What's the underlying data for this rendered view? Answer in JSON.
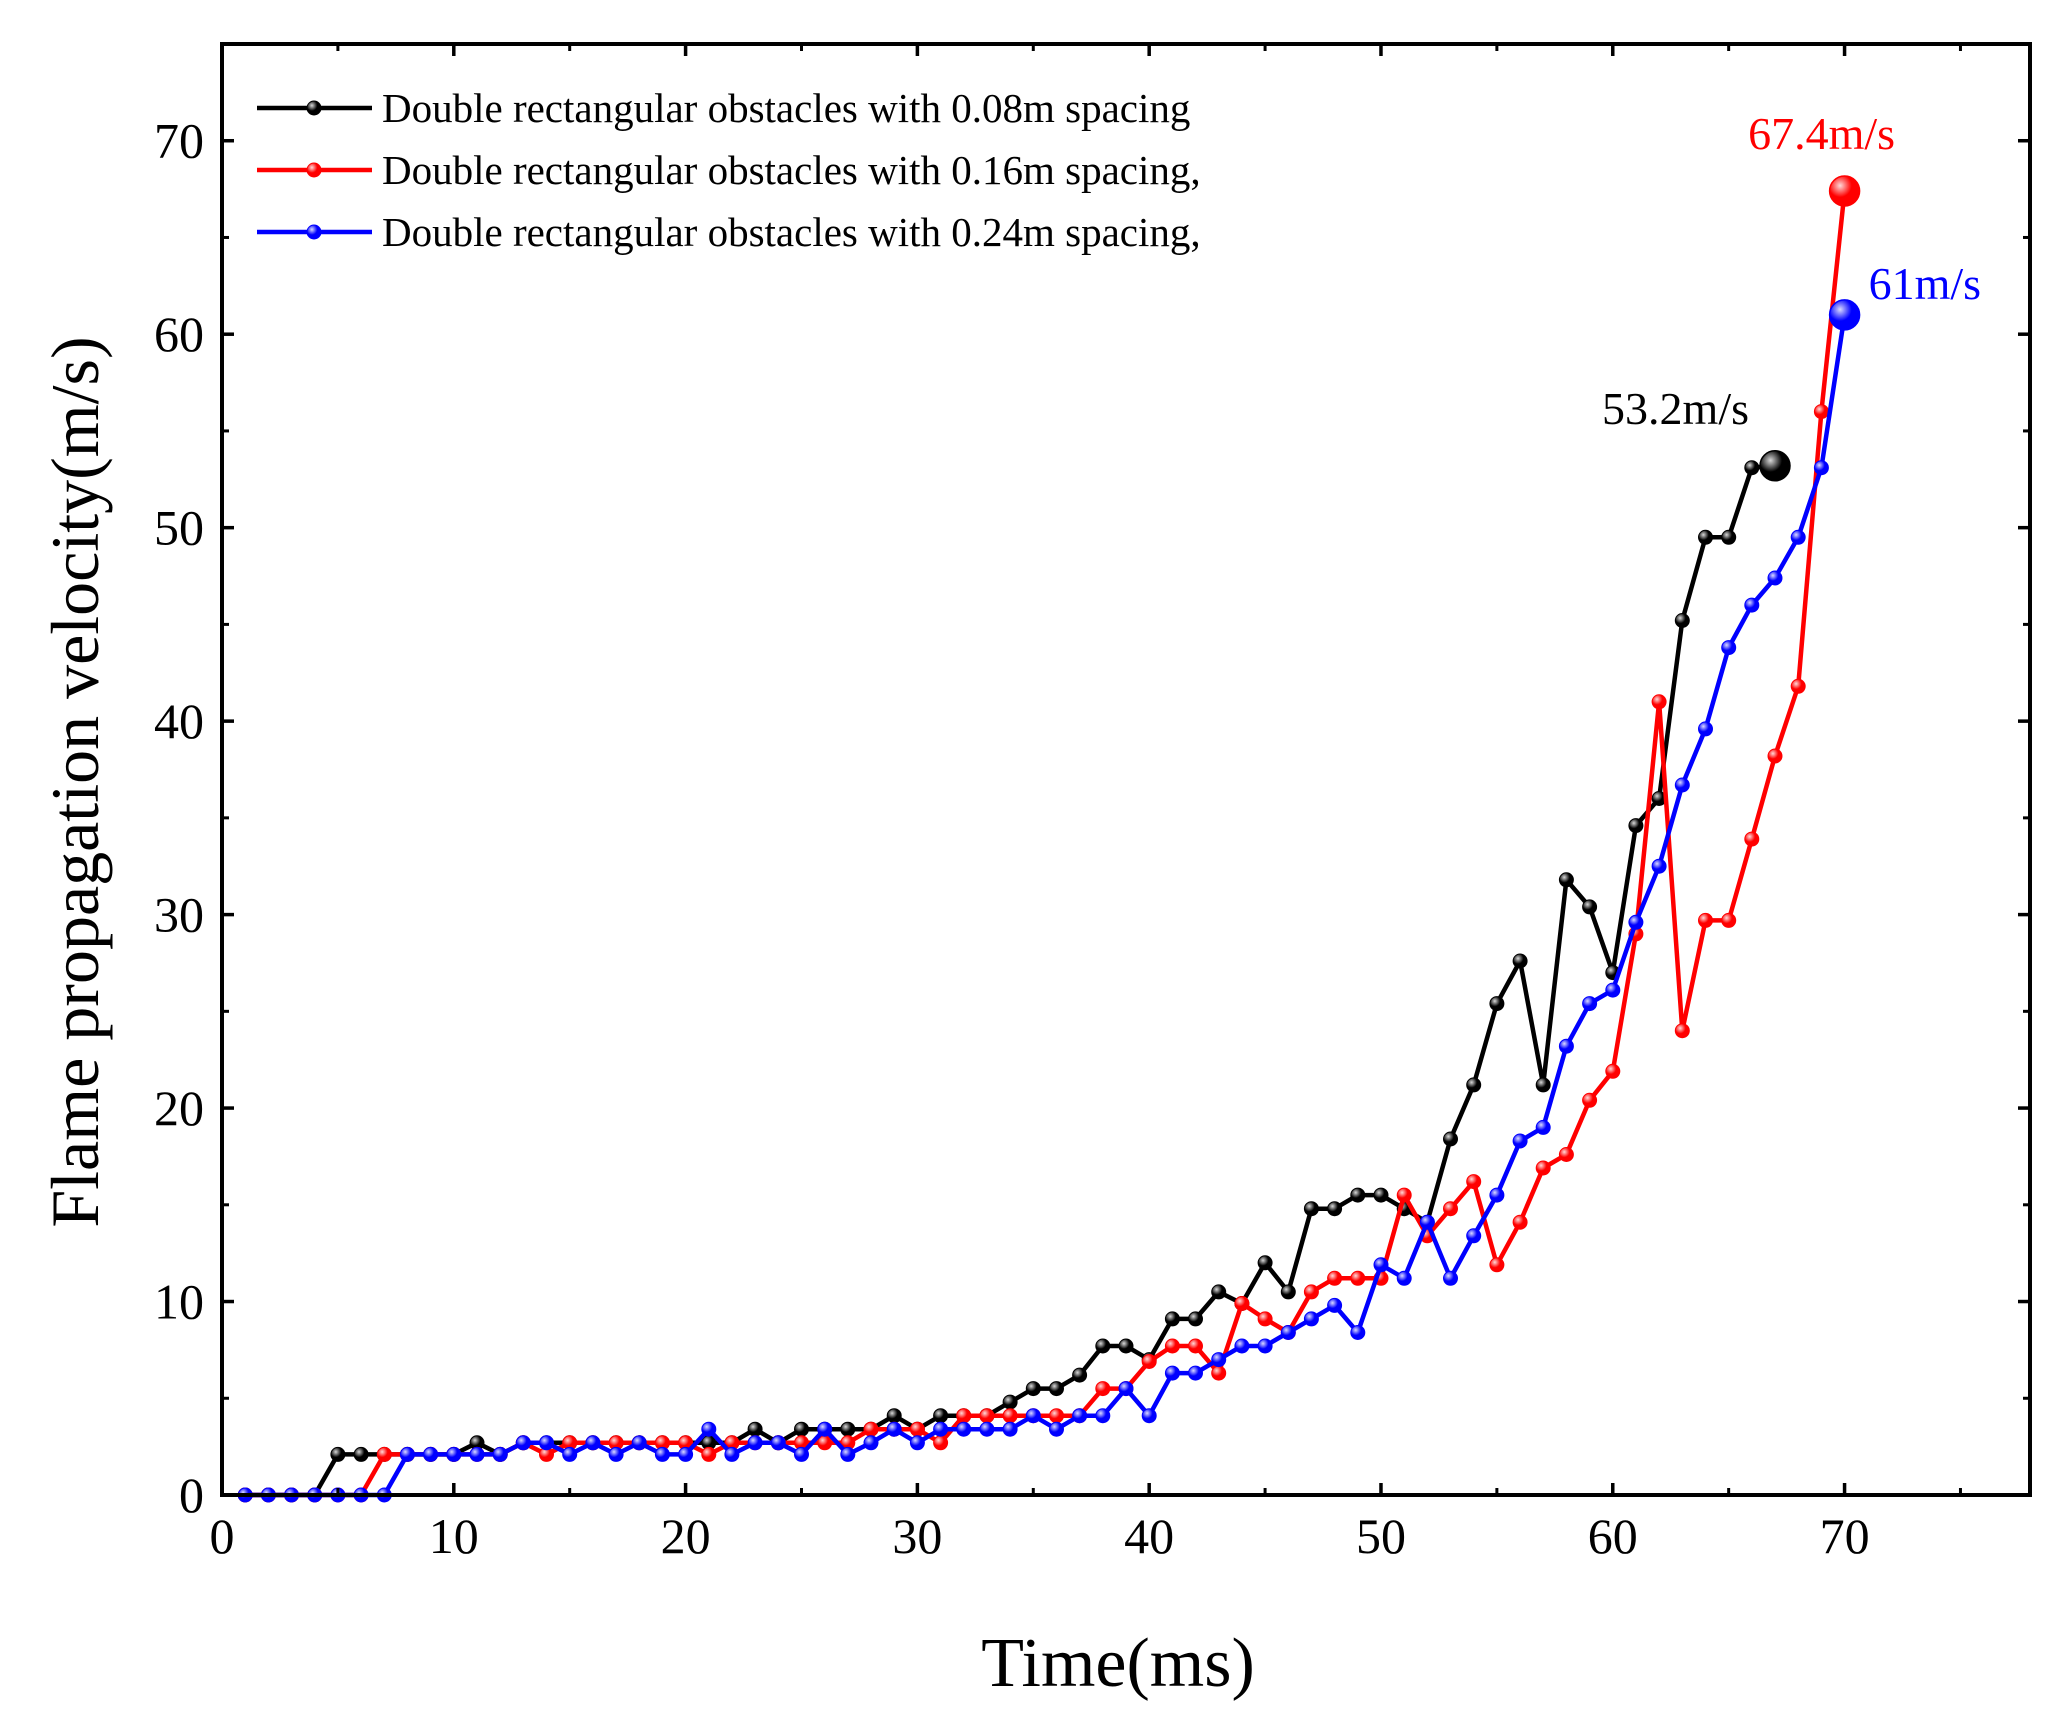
{
  "chart_data": {
    "type": "line",
    "title": "",
    "xlabel": "Time(ms)",
    "ylabel": "Flame propagation velocity(m/s)",
    "xlim": [
      0,
      78
    ],
    "ylim": [
      0,
      75
    ],
    "xticks": [
      0,
      10,
      20,
      30,
      40,
      50,
      60,
      70
    ],
    "xtick_labels": [
      "0",
      "10",
      "20",
      "30",
      "40",
      "50",
      "60",
      "70"
    ],
    "yticks": [
      0,
      10,
      20,
      30,
      40,
      50,
      60,
      70
    ],
    "ytick_labels": [
      "0",
      "10",
      "20",
      "30",
      "40",
      "50",
      "60",
      "70"
    ],
    "grid": false,
    "legend_position": "top-left",
    "series": [
      {
        "name": "Double rectangular obstacles with 0.08m spacing",
        "color": "#000000",
        "x": [
          1,
          2,
          3,
          4,
          5,
          6,
          7,
          8,
          9,
          10,
          11,
          12,
          13,
          14,
          15,
          16,
          17,
          18,
          19,
          20,
          21,
          22,
          23,
          24,
          25,
          26,
          27,
          28,
          29,
          30,
          31,
          32,
          33,
          34,
          35,
          36,
          37,
          38,
          39,
          40,
          41,
          42,
          43,
          44,
          45,
          46,
          47,
          48,
          49,
          50,
          51,
          52,
          53,
          54,
          55,
          56,
          57,
          58,
          59,
          60,
          61,
          62,
          63,
          64,
          65,
          66,
          67
        ],
        "y": [
          0,
          0,
          0,
          0,
          2.1,
          2.1,
          2.1,
          2.1,
          2.1,
          2.1,
          2.7,
          2.1,
          2.7,
          2.7,
          2.7,
          2.7,
          2.7,
          2.7,
          2.7,
          2.7,
          2.7,
          2.7,
          3.4,
          2.7,
          3.4,
          3.4,
          3.4,
          3.4,
          4.1,
          3.4,
          4.1,
          4.1,
          4.1,
          4.8,
          5.5,
          5.5,
          6.2,
          7.7,
          7.7,
          7.0,
          9.1,
          9.1,
          10.5,
          9.9,
          12.0,
          10.5,
          14.8,
          14.8,
          15.5,
          15.5,
          14.8,
          14.1,
          18.4,
          21.2,
          25.4,
          27.6,
          21.2,
          31.8,
          30.4,
          27.0,
          34.6,
          36.0,
          45.2,
          49.5,
          49.5,
          53.1,
          53.2
        ]
      },
      {
        "name": "Double rectangular obstacles with 0.16m spacing,",
        "color": "#ff0000",
        "x": [
          1,
          2,
          3,
          4,
          5,
          6,
          7,
          8,
          9,
          10,
          11,
          12,
          13,
          14,
          15,
          16,
          17,
          18,
          19,
          20,
          21,
          22,
          23,
          24,
          25,
          26,
          27,
          28,
          29,
          30,
          31,
          32,
          33,
          34,
          35,
          36,
          37,
          38,
          39,
          40,
          41,
          42,
          43,
          44,
          45,
          46,
          47,
          48,
          49,
          50,
          51,
          52,
          53,
          54,
          55,
          56,
          57,
          58,
          59,
          60,
          61,
          62,
          63,
          64,
          65,
          66,
          67,
          68,
          69,
          70
        ],
        "y": [
          0,
          0,
          0,
          0,
          0,
          0,
          2.1,
          2.1,
          2.1,
          2.1,
          2.1,
          2.1,
          2.7,
          2.1,
          2.7,
          2.7,
          2.7,
          2.7,
          2.7,
          2.7,
          2.1,
          2.7,
          2.7,
          2.7,
          2.7,
          2.7,
          2.7,
          3.4,
          3.4,
          3.4,
          2.7,
          4.1,
          4.1,
          4.1,
          4.1,
          4.1,
          4.1,
          5.5,
          5.5,
          6.9,
          7.7,
          7.7,
          6.3,
          9.9,
          9.1,
          8.4,
          10.5,
          11.2,
          11.2,
          11.2,
          15.5,
          13.4,
          14.8,
          16.2,
          11.9,
          14.1,
          16.9,
          17.6,
          20.4,
          21.9,
          29.0,
          41.0,
          24.0,
          29.7,
          29.7,
          33.9,
          38.2,
          41.8,
          56.0,
          67.4
        ]
      },
      {
        "name": "Double rectangular obstacles with 0.24m spacing,",
        "color": "#0000ff",
        "x": [
          1,
          2,
          3,
          4,
          5,
          6,
          7,
          8,
          9,
          10,
          11,
          12,
          13,
          14,
          15,
          16,
          17,
          18,
          19,
          20,
          21,
          22,
          23,
          24,
          25,
          26,
          27,
          28,
          29,
          30,
          31,
          32,
          33,
          34,
          35,
          36,
          37,
          38,
          39,
          40,
          41,
          42,
          43,
          44,
          45,
          46,
          47,
          48,
          49,
          50,
          51,
          52,
          53,
          54,
          55,
          56,
          57,
          58,
          59,
          60,
          61,
          62,
          63,
          64,
          65,
          66,
          67,
          68,
          69,
          70
        ],
        "y": [
          0,
          0,
          0,
          0,
          0,
          0,
          0,
          2.1,
          2.1,
          2.1,
          2.1,
          2.1,
          2.7,
          2.7,
          2.1,
          2.7,
          2.1,
          2.7,
          2.1,
          2.1,
          3.4,
          2.1,
          2.7,
          2.7,
          2.1,
          3.4,
          2.1,
          2.7,
          3.4,
          2.7,
          3.4,
          3.4,
          3.4,
          3.4,
          4.1,
          3.4,
          4.1,
          4.1,
          5.5,
          4.1,
          6.3,
          6.3,
          7.0,
          7.7,
          7.7,
          8.4,
          9.1,
          9.8,
          8.4,
          11.9,
          11.2,
          14.1,
          11.2,
          13.4,
          15.5,
          18.3,
          19.0,
          23.2,
          25.4,
          26.1,
          29.6,
          32.5,
          36.7,
          39.6,
          43.8,
          46.0,
          47.4,
          49.5,
          53.1,
          61.0
        ]
      }
    ],
    "annotations": [
      {
        "text": "53.2m/s",
        "x": 67,
        "y": 53.2,
        "color": "#000000"
      },
      {
        "text": "67.4m/s",
        "x": 70,
        "y": 67.4,
        "color": "#ff0000"
      },
      {
        "text": "61m/s",
        "x": 70,
        "y": 61.0,
        "color": "#0000ff"
      }
    ]
  }
}
